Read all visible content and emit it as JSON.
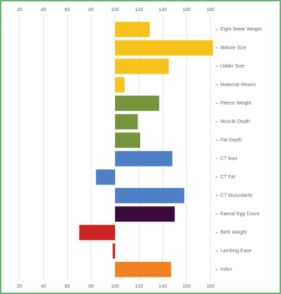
{
  "chart_data": {
    "type": "hbar",
    "categories": [
      "Eight Week Weight",
      "Mature Size",
      "Udder Size",
      "Maternal Weans",
      "Fleece Weight",
      "Muscle Depth",
      "Fat Depth",
      "CT lean",
      "CT Fat",
      "CT Muscularity",
      "Faecal Egg Count",
      "Birth Weight",
      "Lambing Ease",
      "Index"
    ],
    "values": [
      129,
      182,
      145,
      108,
      137,
      119,
      121,
      148,
      84,
      158,
      150,
      70,
      98,
      147
    ],
    "colors": [
      "#f5c31c",
      "#f5c31c",
      "#f5c31c",
      "#f5c31c",
      "#77933c",
      "#77933c",
      "#77933c",
      "#4f7fc4",
      "#4f7fc4",
      "#4f7fc4",
      "#3b0a3d",
      "#cc2424",
      "#cc2424",
      "#f08223"
    ],
    "baseline": 100,
    "xlim": [
      20,
      180
    ],
    "xticks": [
      20,
      40,
      60,
      80,
      100,
      120,
      140,
      160,
      180
    ],
    "grid": true
  }
}
